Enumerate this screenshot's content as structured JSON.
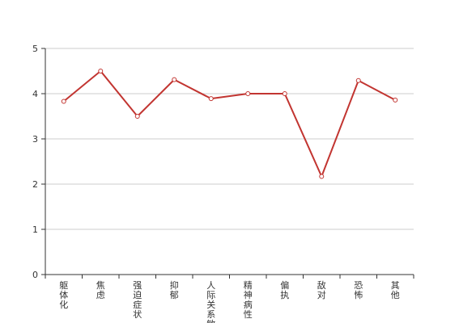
{
  "chart_data": {
    "type": "line",
    "categories": [
      "躯体化",
      "焦虑",
      "强迫症状",
      "抑郁",
      "人际关系敏感",
      "精神病性",
      "偏执",
      "敌对",
      "恐怖",
      "其他"
    ],
    "series": [
      {
        "values": [
          3.83,
          4.5,
          3.5,
          4.31,
          3.89,
          4.0,
          4.0,
          2.17,
          4.29,
          3.86
        ],
        "color": "#c23531"
      }
    ],
    "y_ticks": [
      "0",
      "1",
      "2",
      "3",
      "4",
      "5"
    ],
    "ylim": [
      0,
      5
    ],
    "grid": true,
    "legend": "none",
    "title": "",
    "xlabel": "",
    "ylabel": ""
  }
}
